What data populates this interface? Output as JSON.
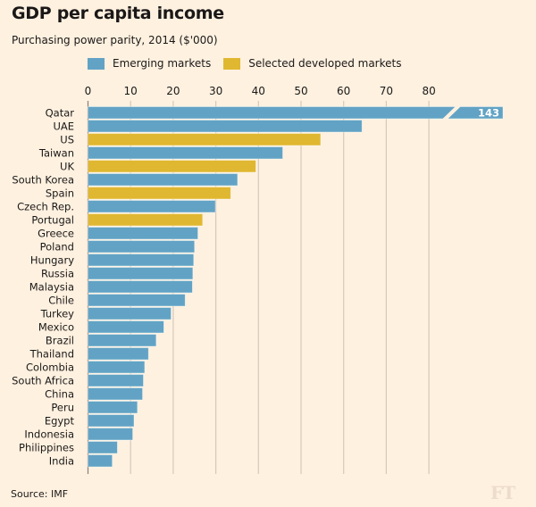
{
  "header": {
    "title": "GDP per capita income",
    "subtitle": "Purchasing power parity, 2014 ($'000)"
  },
  "legend": [
    {
      "label": "Emerging markets",
      "color": "#62a3c5"
    },
    {
      "label": "Selected developed markets",
      "color": "#e0b731"
    }
  ],
  "footer": {
    "source": "Source: IMF",
    "logo": "FT"
  },
  "chart_data": {
    "type": "bar",
    "orientation": "horizontal",
    "title": "GDP per capita income",
    "subtitle": "Purchasing power parity, 2014 ($'000)",
    "xlabel": "",
    "ylabel": "",
    "xlim": [
      0,
      80
    ],
    "xticks": [
      0,
      10,
      20,
      30,
      40,
      50,
      60,
      70,
      80
    ],
    "grid": true,
    "legend_position": "top",
    "axis_break": {
      "category": "Qatar",
      "label": "143"
    },
    "categories": [
      "Qatar",
      "UAE",
      "US",
      "Taiwan",
      "UK",
      "South Korea",
      "Spain",
      "Czech Rep.",
      "Portugal",
      "Greece",
      "Poland",
      "Hungary",
      "Russia",
      "Malaysia",
      "Chile",
      "Turkey",
      "Mexico",
      "Brazil",
      "Thailand",
      "Colombia",
      "South Africa",
      "China",
      "Peru",
      "Egypt",
      "Indonesia",
      "Philippines",
      "India"
    ],
    "values": [
      143,
      64.3,
      54.6,
      45.7,
      39.4,
      35.1,
      33.5,
      29.9,
      26.9,
      25.8,
      25.0,
      24.8,
      24.6,
      24.5,
      22.8,
      19.5,
      17.8,
      16.0,
      14.2,
      13.3,
      13.0,
      12.8,
      11.6,
      10.8,
      10.5,
      6.9,
      5.7
    ],
    "groups": [
      "Emerging markets",
      "Emerging markets",
      "Selected developed markets",
      "Emerging markets",
      "Selected developed markets",
      "Emerging markets",
      "Selected developed markets",
      "Emerging markets",
      "Selected developed markets",
      "Emerging markets",
      "Emerging markets",
      "Emerging markets",
      "Emerging markets",
      "Emerging markets",
      "Emerging markets",
      "Emerging markets",
      "Emerging markets",
      "Emerging markets",
      "Emerging markets",
      "Emerging markets",
      "Emerging markets",
      "Emerging markets",
      "Emerging markets",
      "Emerging markets",
      "Emerging markets",
      "Emerging markets",
      "Emerging markets"
    ]
  }
}
